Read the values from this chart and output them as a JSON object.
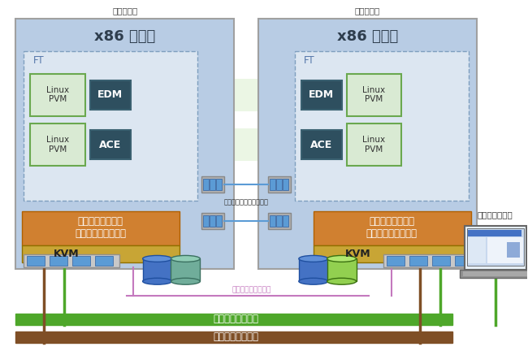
{
  "primary_label": "プライマリ",
  "secondary_label": "セカンダリ",
  "server_title": "x86 サーバ",
  "ft_label": "FT",
  "linux_pvm": "Linux\nPVM",
  "edm_label": "EDM",
  "ace_label": "ACE",
  "avail_line1": "アベイラビリティ",
  "avail_line2": "エクステンションズ",
  "kvm_label": "KVM",
  "avail_link_label": "アベイラビリティリンク",
  "private_link_label": "プライベートリンク",
  "mgmt_network_label": "管理ネットワーク",
  "biz_network_label": "業務ネットワーク",
  "mgmt_console_label": "管理コンソール",
  "server_bg": "#b8cce4",
  "ft_bg": "#dce6f1",
  "linux_pvm_bg": "#d9ead3",
  "linux_pvm_border": "#6aa84f",
  "edm_ace_bg": "#2e4f5f",
  "avail_bg": "#d08030",
  "kvm_bg": "#c8a535",
  "port_bg": "#a0a0a0",
  "port_fg": "#5b9bd5",
  "disk_blue_body": "#4472c4",
  "disk_blue_top": "#6090d8",
  "disk_teal_body": "#70ad9a",
  "disk_teal_top": "#90cdb5",
  "disk_green_body": "#92d050",
  "disk_green_top": "#b0e870",
  "mgmt_network_color": "#4ea72a",
  "biz_network_color": "#7f4f26",
  "private_link_color": "#c479be",
  "sync_band_color": "#e8f5e0"
}
